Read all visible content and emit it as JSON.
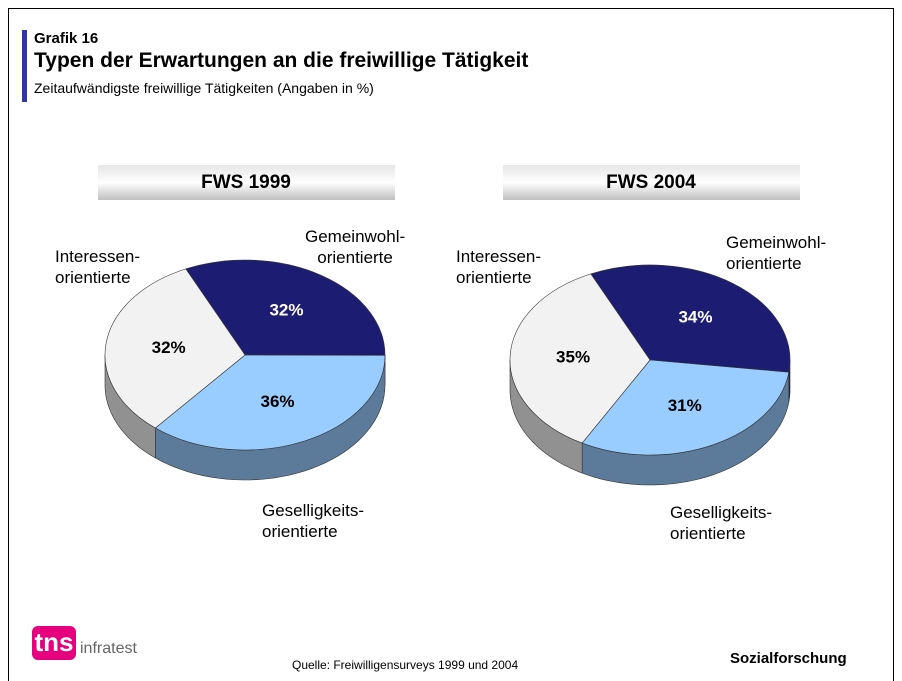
{
  "header": {
    "label": "Grafik 16",
    "title": "Typen der Erwartungen an die freiwillige Tätigkeit",
    "subtitle": "Zeitaufwändigste freiwillige Tätigkeiten (Angaben in %)"
  },
  "chart_data": [
    {
      "type": "pie",
      "title": "FWS 1999",
      "categories": [
        "Gemeinwohl-\norientierte",
        "Geselligkeits-\norientierte",
        "Interessen-\norientierte"
      ],
      "values": [
        32,
        36,
        32
      ],
      "value_labels": [
        "32%",
        "36%",
        "32%"
      ],
      "colors": [
        "#1c1c72",
        "#99ccff",
        "#f2f2f2"
      ]
    },
    {
      "type": "pie",
      "title": "FWS 2004",
      "categories": [
        "Gemeinwohl-\norientierte",
        "Geselligkeits-\norientierte",
        "Interessen-\norientierte"
      ],
      "values": [
        34,
        31,
        35
      ],
      "value_labels": [
        "34%",
        "31%",
        "35%"
      ],
      "colors": [
        "#1c1c72",
        "#99ccff",
        "#f2f2f2"
      ]
    }
  ],
  "footer": {
    "source": "Quelle: Freiwilligensurveys 1999 und 2004",
    "department": "Sozialforschung",
    "logo_brand": "tns",
    "logo_text": "infratest"
  }
}
